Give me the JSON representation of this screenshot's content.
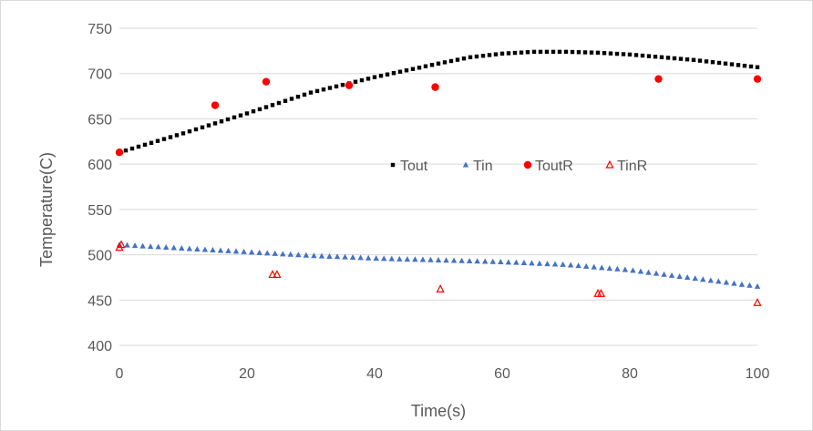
{
  "chart_data": {
    "type": "scatter",
    "title": "",
    "xlabel": "Time(s)",
    "ylabel": "Temperature(C)",
    "xlim": [
      0,
      100
    ],
    "ylim": [
      400,
      750
    ],
    "x_ticks": [
      0,
      20,
      40,
      60,
      80,
      100
    ],
    "y_ticks": [
      400,
      450,
      500,
      550,
      600,
      650,
      700,
      750
    ],
    "grid": "horizontal",
    "legend_position": "center",
    "series": [
      {
        "name": "Tout",
        "marker": "square",
        "color": "#000000",
        "x": [
          0,
          10,
          20,
          30,
          40,
          50,
          55,
          60,
          65,
          70,
          75,
          80,
          90,
          100
        ],
        "y": [
          613,
          634,
          656,
          679,
          696,
          711,
          718,
          722,
          724,
          724,
          723,
          721,
          715,
          707
        ]
      },
      {
        "name": "Tin",
        "marker": "triangle",
        "color": "#4472c4",
        "x": [
          0,
          10,
          20,
          30,
          40,
          50,
          60,
          70,
          80,
          90,
          100
        ],
        "y": [
          511,
          507,
          503,
          499,
          496,
          494,
          492,
          489,
          483,
          474,
          465
        ]
      },
      {
        "name": "ToutR",
        "marker": "circle",
        "color": "#ff0000",
        "x": [
          0,
          15,
          23,
          36,
          49.5,
          84.5,
          100
        ],
        "y": [
          613,
          665,
          691,
          687,
          685,
          694,
          694
        ]
      },
      {
        "name": "TinR",
        "marker": "triangle-open",
        "color": "#ff0000",
        "x": [
          0,
          0.3,
          24,
          24.7,
          50.3,
          75,
          75.5,
          100
        ],
        "y": [
          508,
          511,
          478,
          478,
          462,
          457,
          457,
          447
        ]
      }
    ]
  }
}
